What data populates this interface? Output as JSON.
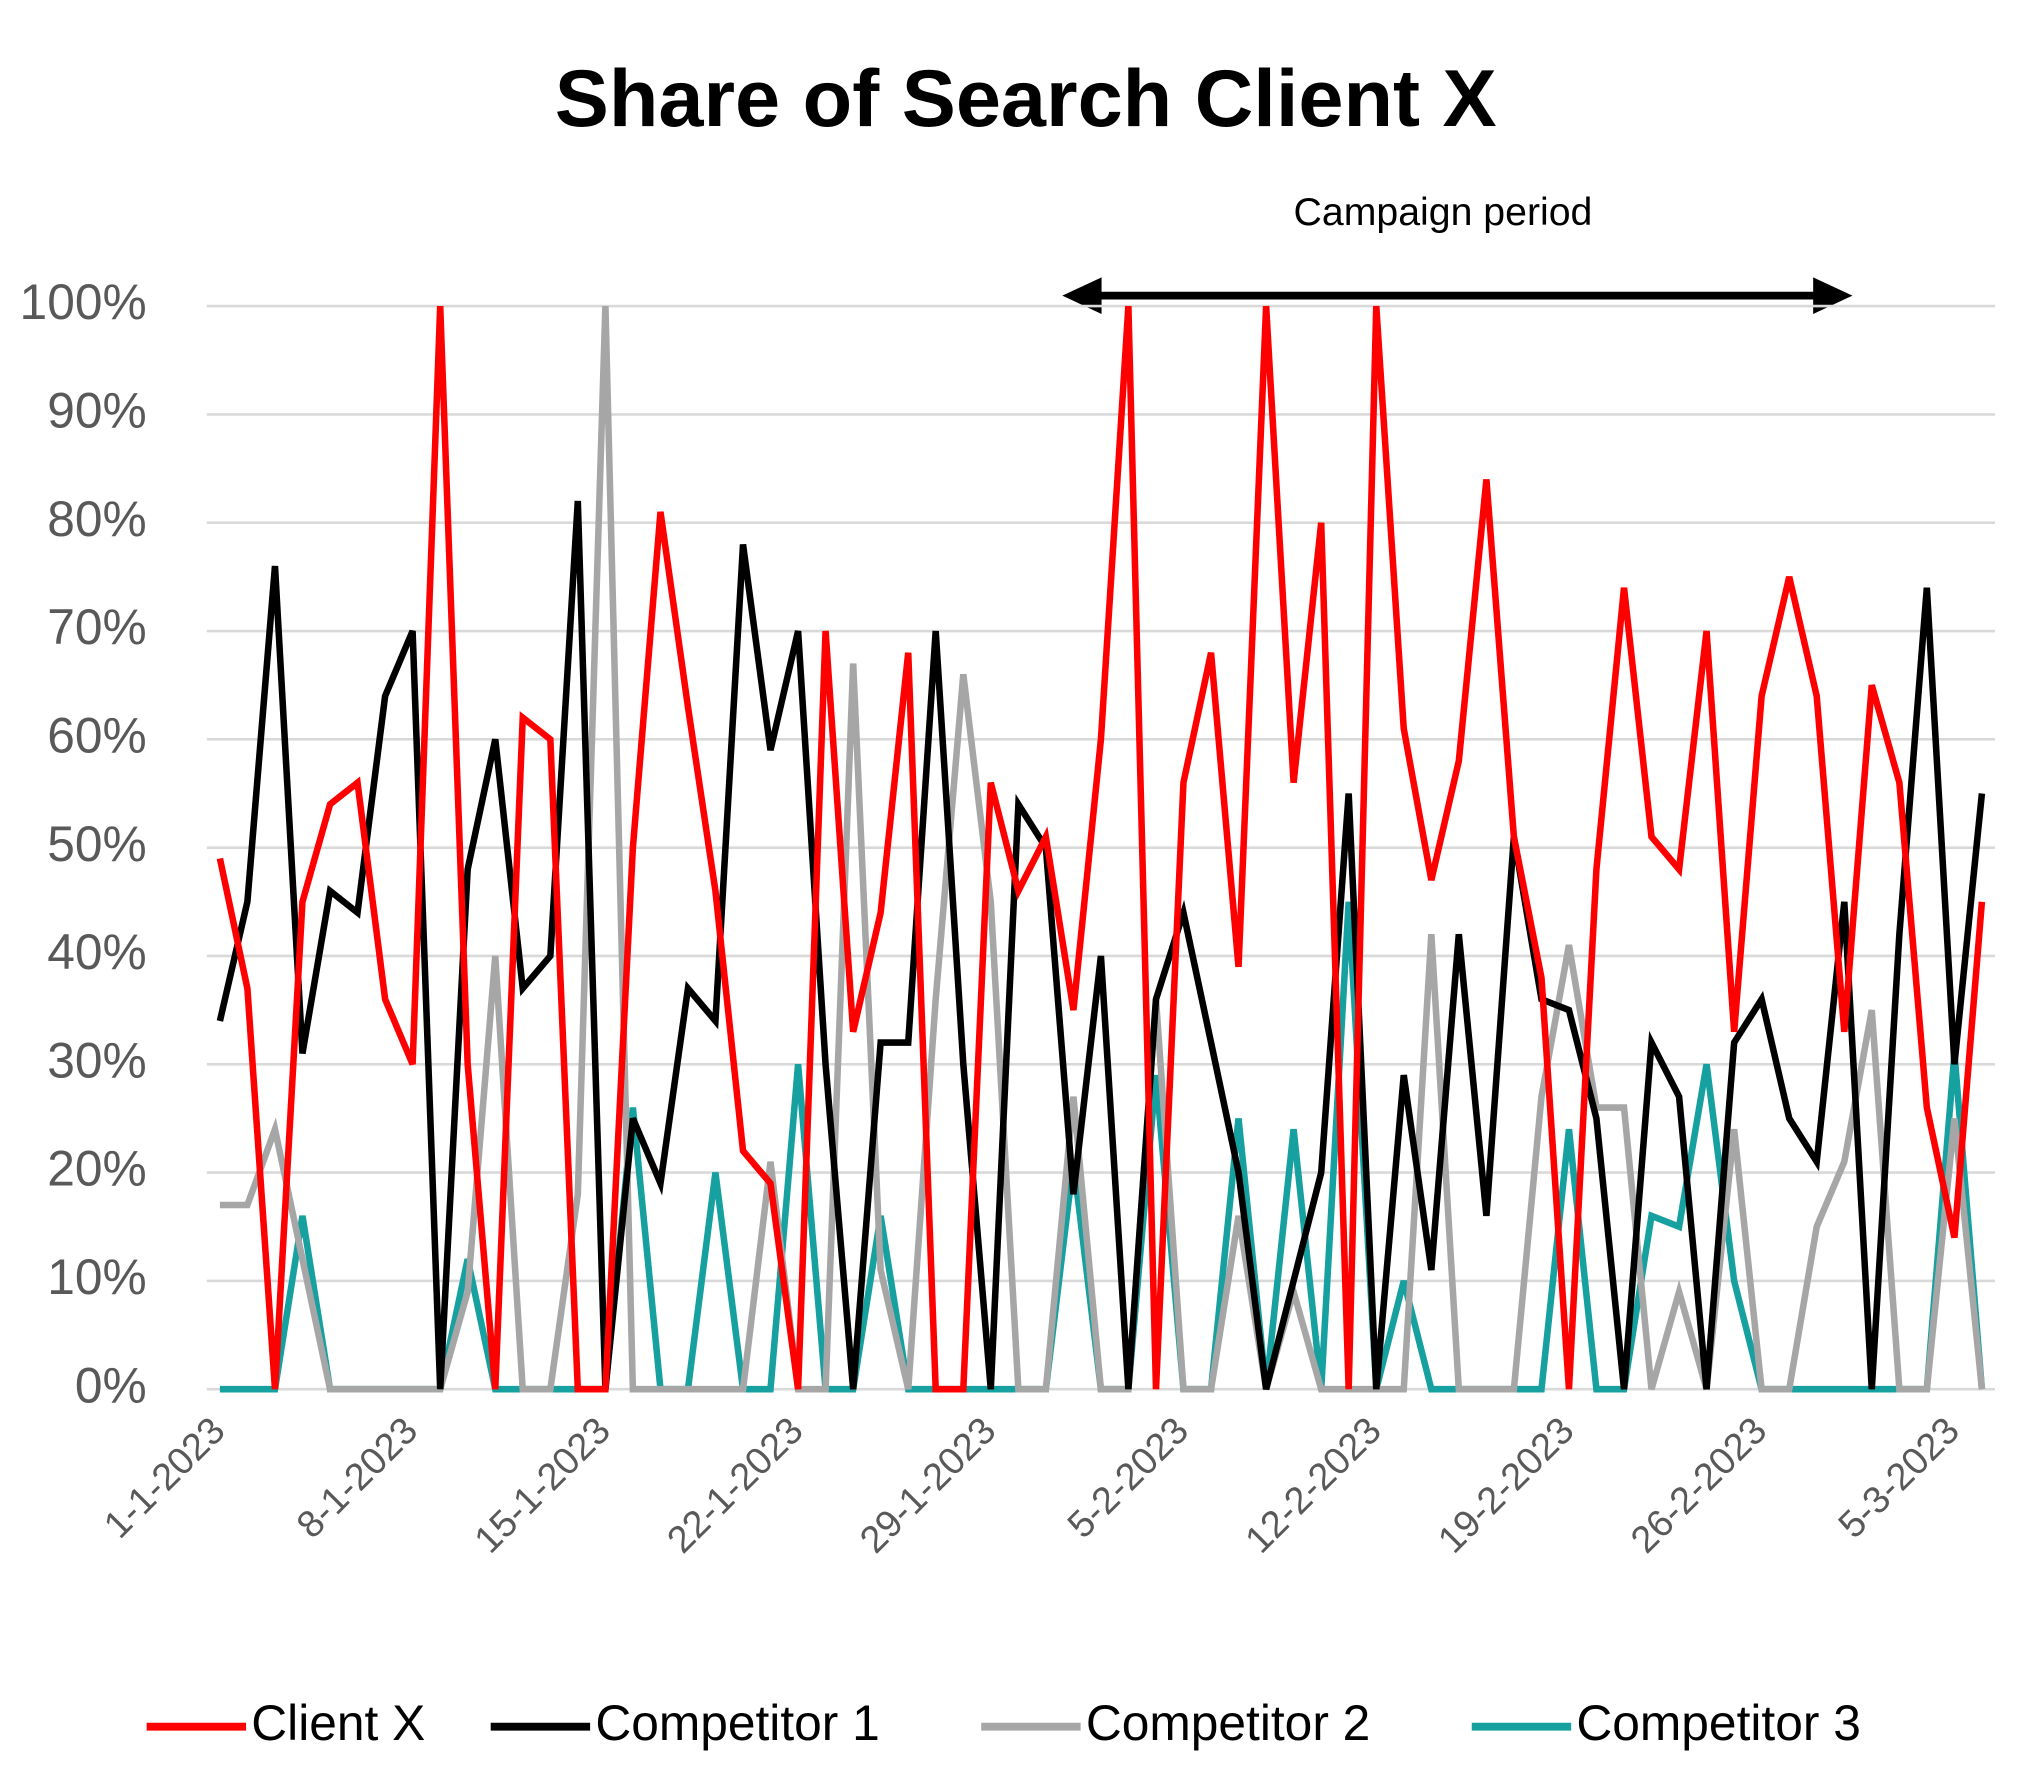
{
  "chart_data": {
    "type": "line",
    "title": "Share of Search Client X",
    "annotation": "Campaign period",
    "categories": [
      "1-1-2023",
      null,
      null,
      null,
      null,
      null,
      null,
      "8-1-2023",
      null,
      null,
      null,
      null,
      null,
      null,
      "15-1-2023",
      null,
      null,
      null,
      null,
      null,
      null,
      "22-1-2023",
      null,
      null,
      null,
      null,
      null,
      null,
      "29-1-2023",
      null,
      null,
      null,
      null,
      null,
      null,
      "5-2-2023",
      null,
      null,
      null,
      null,
      null,
      null,
      "12-2-2023",
      null,
      null,
      null,
      null,
      null,
      null,
      "19-2-2023",
      null,
      null,
      null,
      null,
      null,
      null,
      "26-2-2023",
      null,
      null,
      null,
      null,
      null,
      null,
      "5-3-2023",
      null
    ],
    "series": [
      {
        "name": "Client X",
        "color": "#ff0000",
        "values": [
          49,
          37,
          0,
          45,
          54,
          56,
          36,
          30,
          100,
          30,
          0,
          62,
          60,
          0,
          0,
          50,
          81,
          63,
          46,
          22,
          19,
          0,
          70,
          33,
          44,
          68,
          0,
          0,
          56,
          46,
          51,
          35,
          60,
          100,
          0,
          56,
          68,
          39,
          100,
          56,
          80,
          0,
          100,
          61,
          47,
          58,
          84,
          51,
          38,
          0,
          48,
          74,
          51,
          48,
          70,
          33,
          64,
          75,
          64,
          33,
          65,
          56,
          26,
          14,
          45
        ]
      },
      {
        "name": "Competitor 1",
        "color": "#000000",
        "values": [
          34,
          45,
          76,
          31,
          46,
          44,
          64,
          70,
          0,
          48,
          60,
          37,
          40,
          82,
          0,
          25,
          19,
          37,
          34,
          78,
          59,
          70,
          30,
          0,
          32,
          32,
          70,
          30,
          0,
          54,
          50,
          18,
          40,
          0,
          36,
          44,
          32,
          20,
          0,
          10,
          20,
          55,
          0,
          29,
          11,
          42,
          16,
          51,
          36,
          35,
          25,
          0,
          32,
          27,
          0,
          32,
          36,
          25,
          21,
          45,
          0,
          42,
          74,
          30,
          55
        ]
      },
      {
        "name": "Competitor 2",
        "color": "#a6a6a6",
        "values": [
          17,
          17,
          24,
          12,
          0,
          0,
          0,
          0,
          0,
          9,
          40,
          0,
          0,
          18,
          100,
          0,
          0,
          0,
          0,
          0,
          21,
          0,
          0,
          67,
          11,
          0,
          36,
          66,
          45,
          0,
          0,
          27,
          0,
          0,
          36,
          0,
          0,
          16,
          0,
          9,
          0,
          0,
          0,
          0,
          42,
          0,
          0,
          0,
          27,
          41,
          26,
          26,
          0,
          9,
          0,
          24,
          0,
          0,
          15,
          21,
          35,
          0,
          0,
          25,
          0
        ]
      },
      {
        "name": "Competitor 3",
        "color": "#17a0a0",
        "values": [
          0,
          0,
          0,
          16,
          0,
          0,
          0,
          0,
          0,
          12,
          0,
          0,
          0,
          0,
          0,
          26,
          0,
          0,
          20,
          0,
          0,
          30,
          0,
          0,
          16,
          0,
          0,
          0,
          0,
          0,
          0,
          21,
          0,
          0,
          29,
          0,
          0,
          25,
          0,
          24,
          0,
          45,
          0,
          10,
          0,
          0,
          0,
          0,
          0,
          24,
          0,
          0,
          16,
          15,
          30,
          10,
          0,
          0,
          0,
          0,
          0,
          0,
          0,
          31,
          0
        ]
      }
    ],
    "ylim": [
      0,
      100
    ],
    "yticks": [
      {
        "value": 0,
        "label": "0%"
      },
      {
        "value": 10,
        "label": "10%"
      },
      {
        "value": 20,
        "label": "20%"
      },
      {
        "value": 30,
        "label": "30%"
      },
      {
        "value": 40,
        "label": "40%"
      },
      {
        "value": 50,
        "label": "50%"
      },
      {
        "value": 60,
        "label": "60%"
      },
      {
        "value": 70,
        "label": "70%"
      },
      {
        "value": 80,
        "label": "80%"
      },
      {
        "value": 90,
        "label": "90%"
      },
      {
        "value": 100,
        "label": "100%"
      }
    ],
    "grid": true,
    "legend": "bottom"
  }
}
